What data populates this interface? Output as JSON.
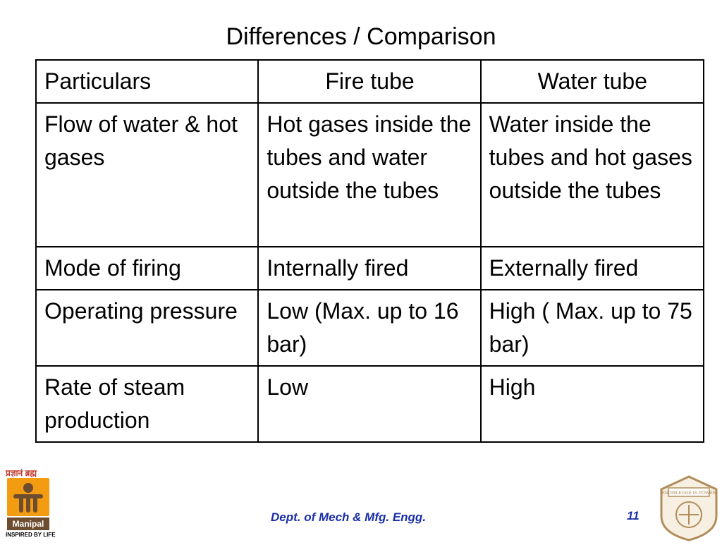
{
  "slide": {
    "title": "Differences / Comparison"
  },
  "table": {
    "headers": [
      "Particulars",
      "Fire tube",
      "Water tube"
    ],
    "rows": [
      [
        "Flow of water & hot gases",
        "Hot gases inside the tubes and water outside the tubes",
        "Water inside the tubes and hot gases outside the tubes"
      ],
      [
        "Mode of firing",
        "Internally fired",
        "Externally fired"
      ],
      [
        "Operating pressure",
        "Low (Max. up to 16 bar)",
        "High ( Max. up to 75 bar)"
      ],
      [
        "Rate of steam production",
        "Low",
        "High"
      ]
    ]
  },
  "footer": {
    "department": "Dept. of Mech & Mfg. Engg.",
    "page_number": "11",
    "logo_left_tagline": "प्रज्ञानं ब्रह्म",
    "logo_left_name": "Manipal",
    "logo_left_subtitle": "INSPIRED BY LIFE",
    "logo_right_motto": "KNOWLEDGE IS POWER"
  },
  "colors": {
    "footer_text": "#1a2fa8",
    "logo_orange": "#f39c12",
    "logo_brown": "#6d4c2f",
    "crest": "#b08d5a"
  }
}
